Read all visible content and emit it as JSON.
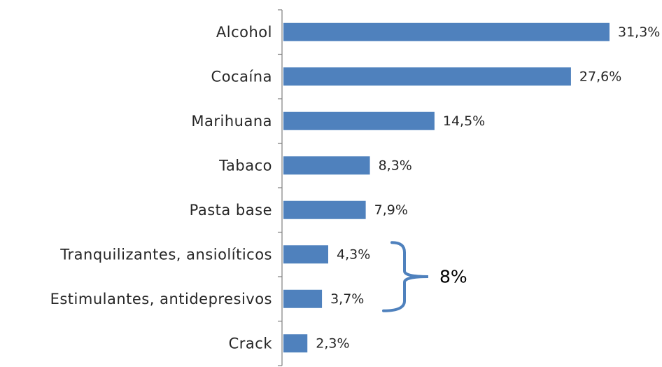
{
  "chart_data": {
    "type": "bar",
    "orientation": "horizontal",
    "categories": [
      "Alcohol",
      "Cocaína",
      "Marihuana",
      "Tabaco",
      "Pasta base",
      "Tranquilizantes, ansiolíticos",
      "Estimulantes, antidepresivos",
      "Crack"
    ],
    "values": [
      31.3,
      27.6,
      14.5,
      8.3,
      7.9,
      4.3,
      3.7,
      2.3
    ],
    "value_labels": [
      "31,3%",
      "27,6%",
      "14,5%",
      "8,3%",
      "7,9%",
      "4,3%",
      "3,7%",
      "2,3%"
    ],
    "xlim": [
      0,
      31.3
    ],
    "grid": false,
    "legend": "none",
    "bar_color": "#4f81bd",
    "annotation": {
      "text": "8%",
      "groups": [
        "Tranquilizantes, ansiolíticos",
        "Estimulantes, antidepresivos"
      ],
      "brace_color": "#4f81bd"
    }
  }
}
